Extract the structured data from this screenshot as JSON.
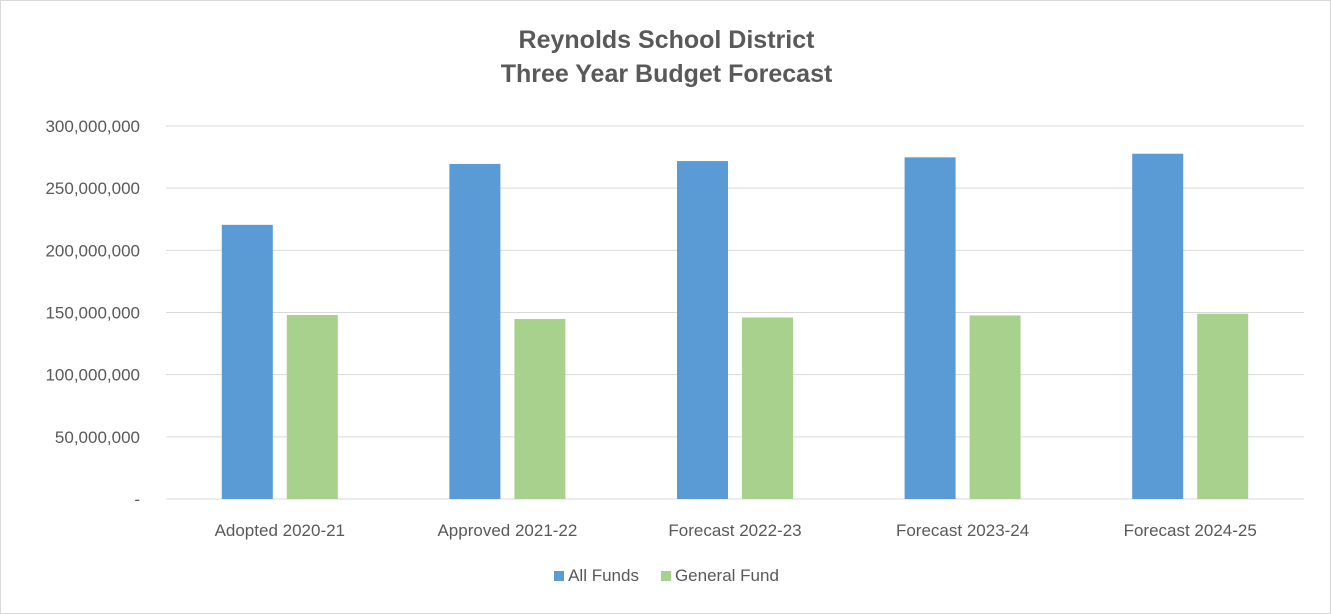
{
  "chart_data": {
    "type": "bar",
    "title": [
      "Reynolds School District",
      "Three Year Budget Forecast"
    ],
    "xlabel": "",
    "ylabel": "",
    "categories": [
      "Adopted 2020-21",
      "Approved 2021-22",
      "Forecast 2022-23",
      "Forecast 2023-24",
      "Forecast 2024-25"
    ],
    "series": [
      {
        "name": "All Funds",
        "color": "#5b9bd5",
        "values": [
          220500000,
          269500000,
          271800000,
          274800000,
          277700000
        ]
      },
      {
        "name": "General Fund",
        "color": "#a9d18e",
        "values": [
          148000000,
          144800000,
          146000000,
          147600000,
          149000000
        ]
      }
    ],
    "ylim": [
      0,
      300000000
    ],
    "yticks": [
      0,
      50000000,
      100000000,
      150000000,
      200000000,
      250000000,
      300000000
    ],
    "ytick_labels": [
      "-",
      "50,000,000",
      "100,000,000",
      "150,000,000",
      "200,000,000",
      "250,000,000",
      "300,000,000"
    ],
    "grid": true,
    "legend_position": "bottom"
  }
}
